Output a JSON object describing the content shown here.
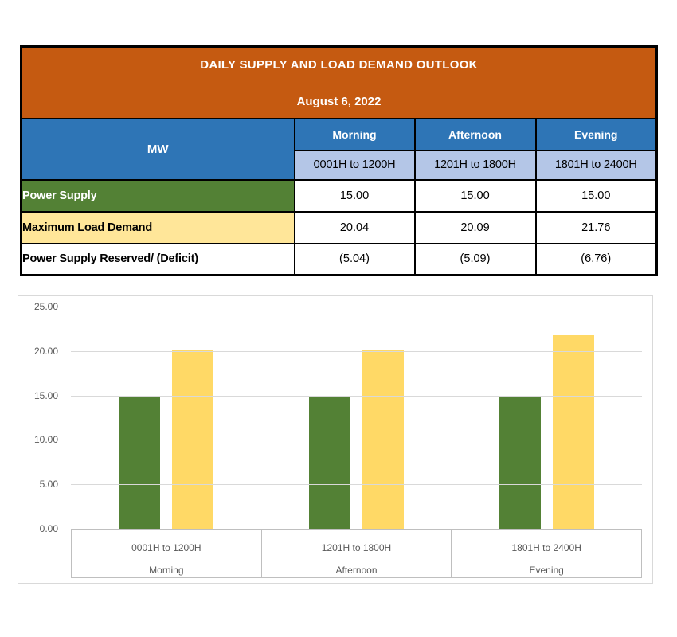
{
  "table": {
    "title": "DAILY SUPPLY AND LOAD DEMAND OUTLOOK",
    "date": "August 6, 2022",
    "unit_header": "MW",
    "periods": [
      {
        "name": "Morning",
        "hours": "0001H to 1200H"
      },
      {
        "name": "Afternoon",
        "hours": "1201H to 1800H"
      },
      {
        "name": "Evening",
        "hours": "1801H to 2400H"
      }
    ],
    "rows": [
      {
        "label": "Power Supply",
        "values": [
          "15.00",
          "15.00",
          "15.00"
        ]
      },
      {
        "label": "Maximum Load Demand",
        "values": [
          "20.04",
          "20.09",
          "21.76"
        ]
      },
      {
        "label": "Power Supply Reserved/ (Deficit)",
        "values": [
          "(5.04)",
          "(5.09)",
          "(6.76)"
        ]
      }
    ]
  },
  "chart_data": {
    "type": "bar",
    "title": "",
    "categories": [
      {
        "hours": "0001H to 1200H",
        "period": "Morning"
      },
      {
        "hours": "1201H to 1800H",
        "period": "Afternoon"
      },
      {
        "hours": "1801H to 2400H",
        "period": "Evening"
      }
    ],
    "series": [
      {
        "name": "Power Supply",
        "color": "#538135",
        "values": [
          15.0,
          15.0,
          15.0
        ]
      },
      {
        "name": "Maximum Load Demand",
        "color": "#FFD966",
        "values": [
          20.04,
          20.09,
          21.76
        ]
      }
    ],
    "xlabel": "",
    "ylabel": "",
    "ylim": [
      0,
      25
    ],
    "y_ticks": [
      "25.00",
      "20.00",
      "15.00",
      "10.00",
      "5.00",
      "0.00"
    ],
    "grid": true,
    "legend": "none"
  },
  "colors": {
    "header_orange": "#C55A11",
    "header_blue": "#2E75B6",
    "subheader_blue": "#B4C6E7",
    "supply_green": "#538135",
    "demand_yellow_table": "#FFE699",
    "demand_yellow_bar": "#FFD966",
    "axis_text_gray": "#595959",
    "gridline_gray": "#D9D9D9",
    "axis_line_gray": "#BFBFBF",
    "border_black": "#000000"
  }
}
